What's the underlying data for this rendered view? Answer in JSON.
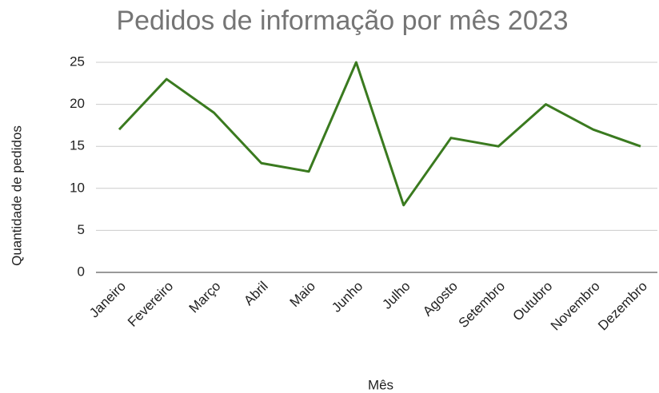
{
  "chart_data": {
    "type": "line",
    "title": "Pedidos de informação por mês 2023",
    "x_label": "Mês",
    "y_label": "Quantidade de pedidos",
    "categories": [
      "Janeiro",
      "Fevereiro",
      "Março",
      "Abril",
      "Maio",
      "Junho",
      "Julho",
      "Agosto",
      "Setembro",
      "Outubro",
      "Novembro",
      "Dezembro"
    ],
    "series": [
      {
        "name": "Quantidade de pedidos",
        "color": "#3a7a1f",
        "values": [
          17,
          23,
          19,
          13,
          12,
          25,
          8,
          16,
          15,
          20,
          17,
          15
        ]
      }
    ],
    "ylim": [
      0,
      25
    ],
    "yticks": [
      0,
      5,
      10,
      15,
      20,
      25
    ],
    "grid": true
  }
}
